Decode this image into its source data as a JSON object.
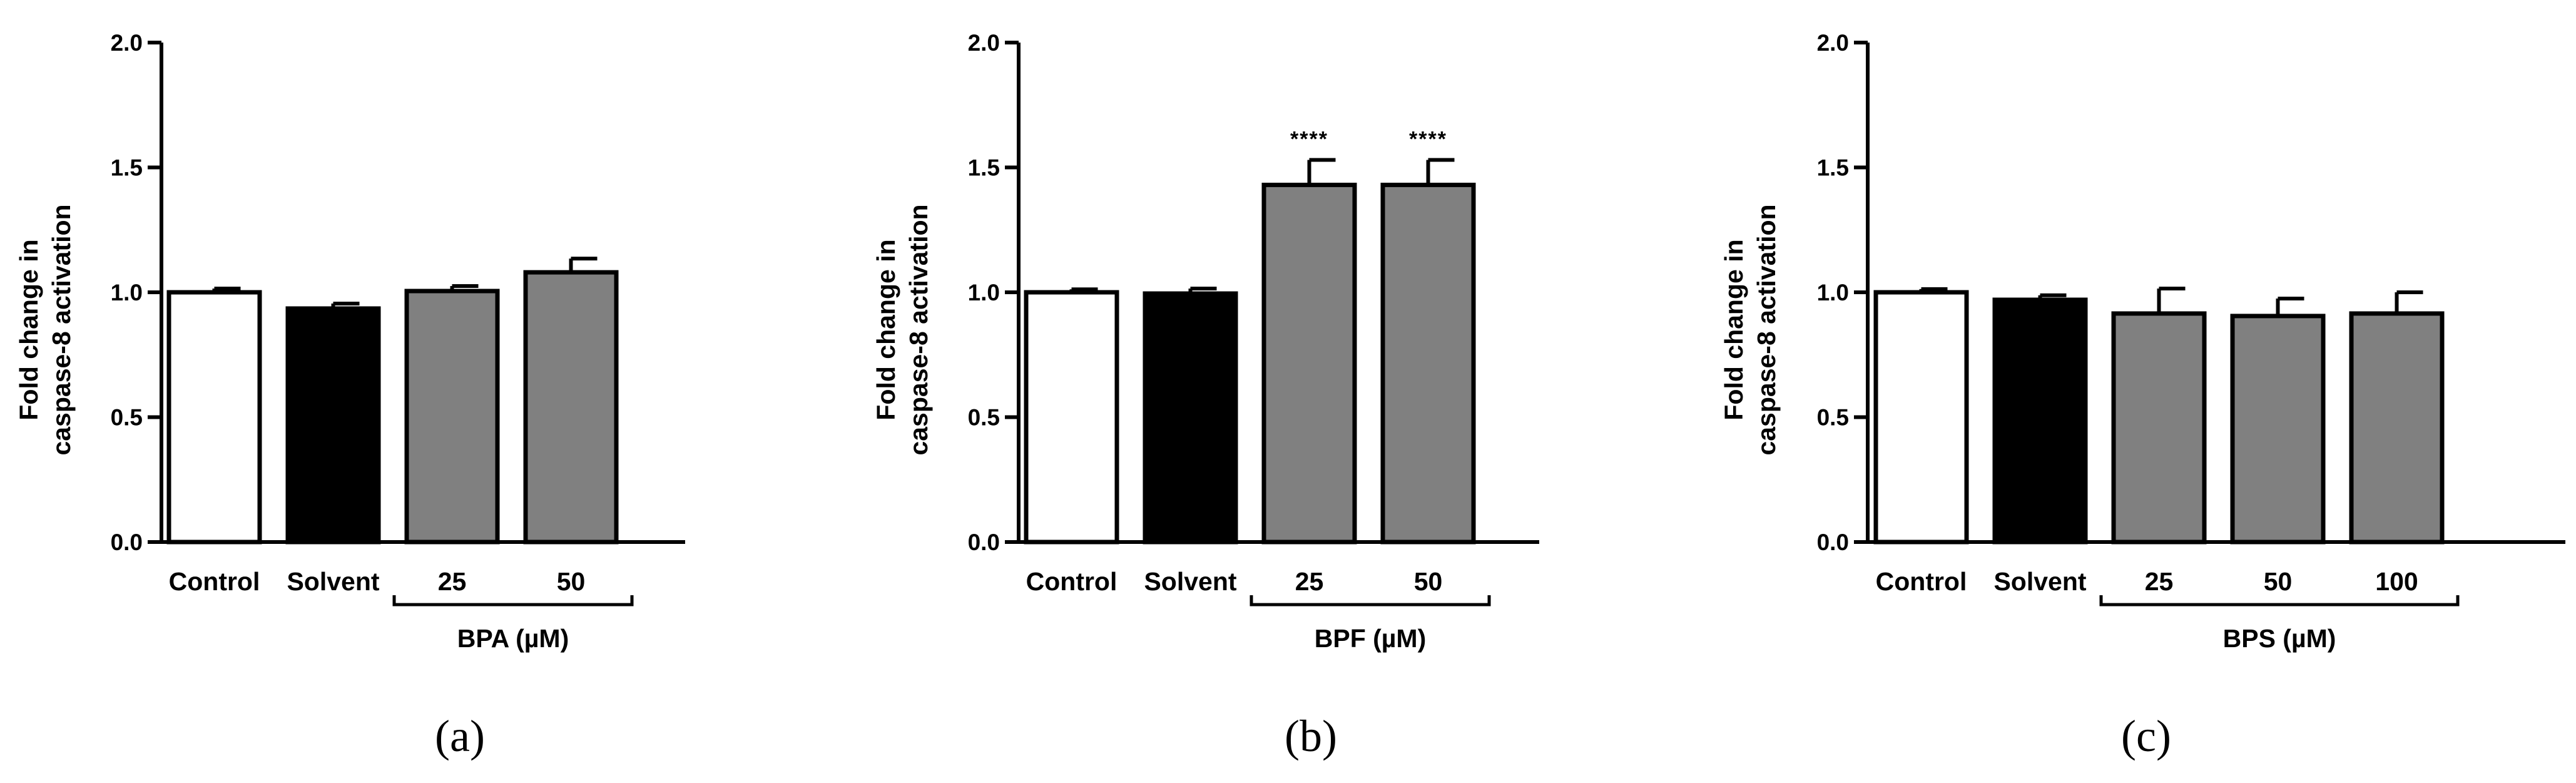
{
  "chart_data": [
    {
      "type": "bar",
      "panel_label": "(a)",
      "ylabel_lines": [
        "Fold change in",
        "caspase-8 activation"
      ],
      "ylim": [
        0,
        2.0
      ],
      "yticks": [
        0.0,
        0.5,
        1.0,
        1.5,
        2.0
      ],
      "ytick_labels": [
        "0.0",
        "0.5",
        "1.0",
        "1.5",
        "2.0"
      ],
      "categories": [
        "Control",
        "Solvent",
        "25",
        "50"
      ],
      "values": [
        1.0,
        0.935,
        1.005,
        1.08
      ],
      "errors": [
        0.015,
        0.02,
        0.02,
        0.055
      ],
      "significance": [
        "",
        "",
        "",
        ""
      ],
      "bar_colors": [
        "#ffffff",
        "#000000",
        "#808080",
        "#808080"
      ],
      "group": {
        "label": "BPA (µM)",
        "from": 2,
        "to": 3
      }
    },
    {
      "type": "bar",
      "panel_label": "(b)",
      "ylabel_lines": [
        "Fold change in",
        "caspase-8 activation"
      ],
      "ylim": [
        0,
        2.0
      ],
      "yticks": [
        0.0,
        0.5,
        1.0,
        1.5,
        2.0
      ],
      "ytick_labels": [
        "0.0",
        "0.5",
        "1.0",
        "1.5",
        "2.0"
      ],
      "categories": [
        "Control",
        "Solvent",
        "25",
        "50"
      ],
      "values": [
        1.0,
        0.995,
        1.43,
        1.43
      ],
      "errors": [
        0.012,
        0.02,
        0.1,
        0.1
      ],
      "significance": [
        "",
        "",
        "****",
        "****"
      ],
      "bar_colors": [
        "#ffffff",
        "#000000",
        "#808080",
        "#808080"
      ],
      "group": {
        "label": "BPF (µM)",
        "from": 2,
        "to": 3
      }
    },
    {
      "type": "bar",
      "panel_label": "(c)",
      "ylabel_lines": [
        "Fold change in",
        "caspase-8 activation"
      ],
      "ylim": [
        0,
        2.0
      ],
      "yticks": [
        0.0,
        0.5,
        1.0,
        1.5,
        2.0
      ],
      "ytick_labels": [
        "0.0",
        "0.5",
        "1.0",
        "1.5",
        "2.0"
      ],
      "categories": [
        "Control",
        "Solvent",
        "25",
        "50",
        "100"
      ],
      "values": [
        1.0,
        0.97,
        0.915,
        0.905,
        0.915
      ],
      "errors": [
        0.013,
        0.018,
        0.1,
        0.07,
        0.085
      ],
      "significance": [
        "",
        "",
        "",
        "",
        ""
      ],
      "bar_colors": [
        "#ffffff",
        "#000000",
        "#808080",
        "#808080",
        "#808080"
      ],
      "group": {
        "label": "BPS (µM)",
        "from": 2,
        "to": 4
      }
    }
  ]
}
